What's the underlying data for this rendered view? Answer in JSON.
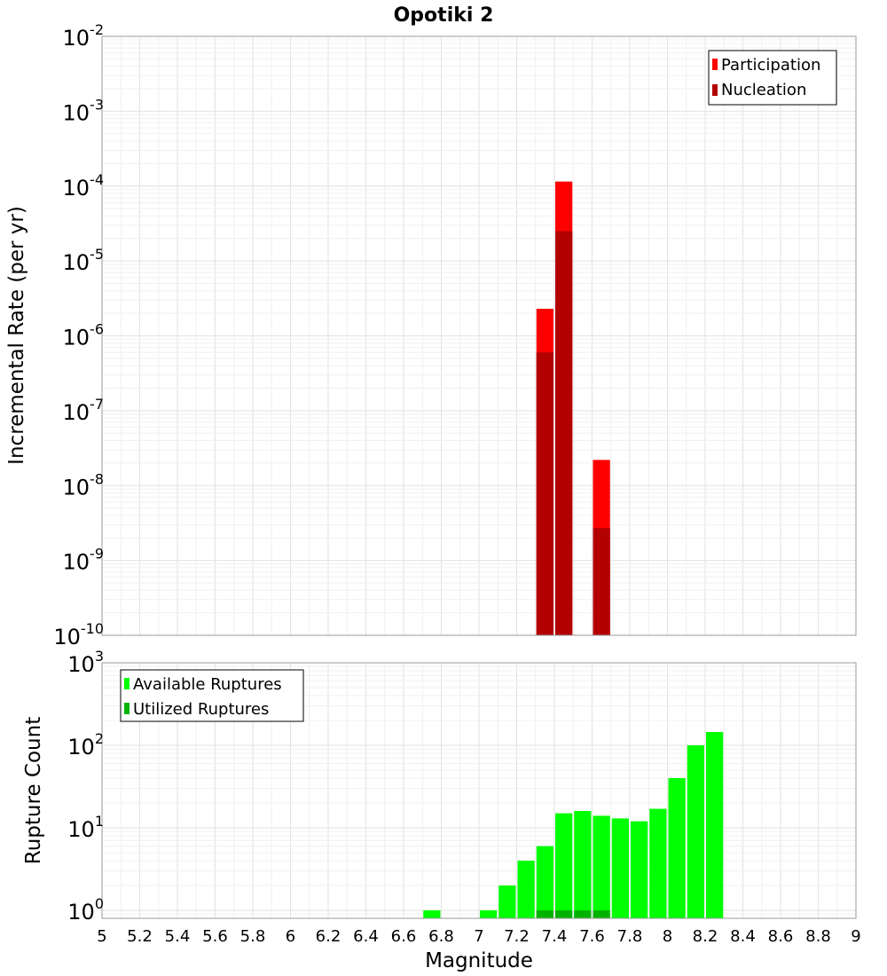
{
  "chart_data": [
    {
      "type": "bar",
      "panel": "top",
      "title": "Opotiki 2",
      "xlabel": "Magnitude",
      "ylabel": "Incremental Rate (per yr)",
      "xlim": [
        5,
        9
      ],
      "ylim": [
        1e-10,
        0.01
      ],
      "yscale": "log",
      "grid": true,
      "legend_position": "top-right",
      "y_tick_labels": [
        {
          "base": "10",
          "exp": "-2"
        },
        {
          "base": "10",
          "exp": "-3"
        },
        {
          "base": "10",
          "exp": "-4"
        },
        {
          "base": "10",
          "exp": "-5"
        },
        {
          "base": "10",
          "exp": "-6"
        },
        {
          "base": "10",
          "exp": "-7"
        },
        {
          "base": "10",
          "exp": "-8"
        },
        {
          "base": "10",
          "exp": "-9"
        },
        {
          "base": "10",
          "exp": "-10"
        }
      ],
      "series": [
        {
          "name": "Participation",
          "color": "#ff0000",
          "x": [
            7.35,
            7.45,
            7.65
          ],
          "values": [
            2.3e-06,
            0.000115,
            2.2e-08
          ]
        },
        {
          "name": "Nucleation",
          "color": "#b30000",
          "x": [
            7.35,
            7.45,
            7.65
          ],
          "values": [
            6e-07,
            2.5e-05,
            2.7e-09
          ]
        }
      ]
    },
    {
      "type": "bar",
      "panel": "bottom",
      "xlabel": "Magnitude",
      "ylabel": "Rupture Count",
      "xlim": [
        5,
        9
      ],
      "ylim": [
        0.8,
        1000
      ],
      "yscale": "log",
      "grid": true,
      "legend_position": "top-left",
      "x_tick_labels": [
        "5",
        "5.2",
        "5.4",
        "5.6",
        "5.8",
        "6",
        "6.2",
        "6.4",
        "6.6",
        "6.8",
        "7",
        "7.2",
        "7.4",
        "7.6",
        "7.8",
        "8",
        "8.2",
        "8.4",
        "8.6",
        "8.8",
        "9"
      ],
      "y_tick_labels": [
        {
          "base": "10",
          "exp": "3"
        },
        {
          "base": "10",
          "exp": "2"
        },
        {
          "base": "10",
          "exp": "1"
        },
        {
          "base": "10",
          "exp": "0"
        }
      ],
      "series": [
        {
          "name": "Available Ruptures",
          "color": "#00ff00",
          "x": [
            6.75,
            7.05,
            7.15,
            7.25,
            7.35,
            7.45,
            7.55,
            7.65,
            7.75,
            7.85,
            7.95,
            8.05,
            8.15,
            8.25
          ],
          "values": [
            1,
            1,
            2,
            4,
            6,
            15,
            16,
            14,
            13,
            12,
            17,
            40,
            100,
            145
          ]
        },
        {
          "name": "Utilized Ruptures",
          "color": "#00b300",
          "x": [
            7.35,
            7.45,
            7.55,
            7.65
          ],
          "values": [
            1,
            1,
            1,
            1
          ]
        }
      ]
    }
  ]
}
